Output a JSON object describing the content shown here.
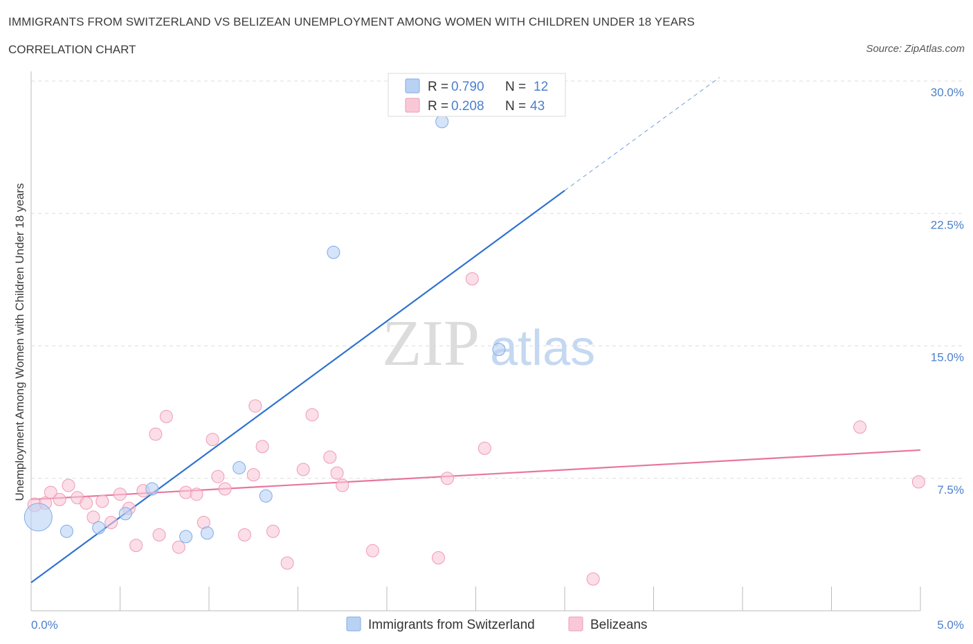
{
  "header": {
    "title": "IMMIGRANTS FROM SWITZERLAND VS BELIZEAN UNEMPLOYMENT AMONG WOMEN WITH CHILDREN UNDER 18 YEARS",
    "subtitle": "CORRELATION CHART",
    "source": "Source: ZipAtlas.com"
  },
  "watermark": {
    "zip": "ZIP",
    "atlas": "atlas"
  },
  "colors": {
    "blue_fill": "#b9d2f3",
    "blue_stroke": "#7eaaea",
    "blue_line": "#2f72d0",
    "pink_fill": "#f9c8d7",
    "pink_stroke": "#ee9ab4",
    "pink_line": "#e8769c",
    "tick_text": "#4a7fcb",
    "grid": "#dddddd"
  },
  "legend": {
    "rows": [
      {
        "r_label": "R = ",
        "r_value": "0.790",
        "n_label": "N = ",
        "n_value": "12"
      },
      {
        "r_label": "R = ",
        "r_value": "0.208",
        "n_label": "N = ",
        "n_value": "43"
      }
    ]
  },
  "chart_data": {
    "type": "scatter",
    "title": "IMMIGRANTS FROM SWITZERLAND VS BELIZEAN UNEMPLOYMENT AMONG WOMEN WITH CHILDREN UNDER 18 YEARS",
    "subtitle": "CORRELATION CHART",
    "xlabel": "",
    "ylabel": "Unemployment Among Women with Children Under 18 years",
    "xlim": [
      0,
      5
    ],
    "ylim": [
      0,
      30
    ],
    "x_tick_labels": [
      "0.0%",
      "5.0%"
    ],
    "y_ticks": [
      7.5,
      15,
      22.5,
      30
    ],
    "y_tick_labels": [
      "7.5%",
      "15.0%",
      "22.5%",
      "30.0%"
    ],
    "grid": "horizontal dashed",
    "legend_position": "bottom-center",
    "series": [
      {
        "name": "Immigrants from Switzerland",
        "color": "#b9d2f3",
        "R": 0.79,
        "N": 12,
        "points": [
          [
            0.04,
            5.3,
            20
          ],
          [
            0.2,
            4.5,
            9
          ],
          [
            0.38,
            4.7,
            9
          ],
          [
            0.53,
            5.5,
            9
          ],
          [
            0.68,
            6.9,
            9
          ],
          [
            0.87,
            4.2,
            9
          ],
          [
            0.99,
            4.4,
            9
          ],
          [
            1.17,
            8.1,
            9
          ],
          [
            1.32,
            6.5,
            9
          ],
          [
            1.7,
            20.3,
            9
          ],
          [
            2.31,
            27.7,
            9
          ],
          [
            2.63,
            14.8,
            9
          ]
        ],
        "trend": {
          "x": [
            0,
            3.0
          ],
          "y": [
            1.6,
            23.8
          ]
        },
        "trend_extension": {
          "x": [
            3.0,
            3.87
          ],
          "y": [
            23.8,
            30.2
          ]
        }
      },
      {
        "name": "Belizeans",
        "color": "#f9c8d7",
        "R": 0.208,
        "N": 43,
        "points": [
          [
            0.02,
            6.0,
            10
          ],
          [
            0.08,
            6.1,
            9
          ],
          [
            0.11,
            6.7,
            9
          ],
          [
            0.16,
            6.3,
            9
          ],
          [
            0.21,
            7.1,
            9
          ],
          [
            0.26,
            6.4,
            9
          ],
          [
            0.31,
            6.1,
            9
          ],
          [
            0.35,
            5.3,
            9
          ],
          [
            0.4,
            6.2,
            9
          ],
          [
            0.45,
            5.0,
            9
          ],
          [
            0.5,
            6.6,
            9
          ],
          [
            0.55,
            5.8,
            9
          ],
          [
            0.59,
            3.7,
            9
          ],
          [
            0.63,
            6.8,
            9
          ],
          [
            0.7,
            10.0,
            9
          ],
          [
            0.72,
            4.3,
            9
          ],
          [
            0.76,
            11.0,
            9
          ],
          [
            0.83,
            3.6,
            9
          ],
          [
            0.87,
            6.7,
            9
          ],
          [
            0.93,
            6.6,
            9
          ],
          [
            0.97,
            5.0,
            9
          ],
          [
            1.02,
            9.7,
            9
          ],
          [
            1.05,
            7.6,
            9
          ],
          [
            1.09,
            6.9,
            9
          ],
          [
            1.2,
            4.3,
            9
          ],
          [
            1.25,
            7.7,
            9
          ],
          [
            1.26,
            11.6,
            9
          ],
          [
            1.3,
            9.3,
            9
          ],
          [
            1.36,
            4.5,
            9
          ],
          [
            1.44,
            2.7,
            9
          ],
          [
            1.53,
            8.0,
            9
          ],
          [
            1.58,
            11.1,
            9
          ],
          [
            1.68,
            8.7,
            9
          ],
          [
            1.72,
            7.8,
            9
          ],
          [
            1.75,
            7.1,
            9
          ],
          [
            1.92,
            3.4,
            9
          ],
          [
            2.29,
            3.0,
            9
          ],
          [
            2.34,
            7.5,
            9
          ],
          [
            2.55,
            9.2,
            9
          ],
          [
            2.48,
            18.8,
            9
          ],
          [
            3.16,
            1.8,
            9
          ],
          [
            4.66,
            10.4,
            9
          ],
          [
            4.99,
            7.3,
            9
          ]
        ],
        "trend": {
          "x": [
            0,
            5.0
          ],
          "y": [
            6.3,
            9.1
          ]
        }
      }
    ]
  }
}
